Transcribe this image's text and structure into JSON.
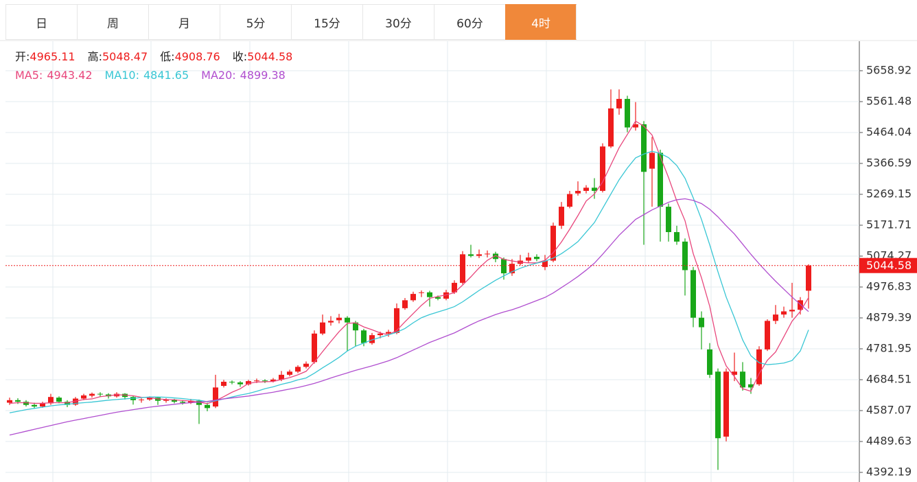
{
  "tabs": {
    "items": [
      "日",
      "周",
      "月",
      "5分",
      "15分",
      "30分",
      "60分",
      "4时"
    ],
    "active": 7,
    "active_color": "#f0883a"
  },
  "chart_data": {
    "type": "candlestick",
    "up_color": "#ee1c1c",
    "down_color": "#19a719",
    "ylim": [
      4361.9,
      5752
    ],
    "yticks": [
      4392.19,
      4489.63,
      4587.07,
      4684.51,
      4781.95,
      4879.39,
      4976.83,
      5074.27,
      5171.71,
      5269.15,
      5366.59,
      5464.04,
      5561.48,
      5658.92
    ],
    "grid": true,
    "ohlc_labels": [
      "开:",
      "高:",
      "低:",
      "收:"
    ],
    "ohlc": [
      [
        4612,
        4628,
        4605,
        4620
      ],
      [
        4620,
        4626,
        4608,
        4615
      ],
      [
        4615,
        4620,
        4600,
        4605
      ],
      [
        4605,
        4612,
        4595,
        4600
      ],
      [
        4600,
        4615,
        4596,
        4610
      ],
      [
        4610,
        4640,
        4605,
        4630
      ],
      [
        4628,
        4632,
        4610,
        4615
      ],
      [
        4615,
        4620,
        4598,
        4605
      ],
      [
        4606,
        4630,
        4602,
        4625
      ],
      [
        4625,
        4640,
        4620,
        4635
      ],
      [
        4634,
        4644,
        4628,
        4640
      ],
      [
        4640,
        4645,
        4630,
        4638
      ],
      [
        4638,
        4642,
        4625,
        4632
      ],
      [
        4632,
        4645,
        4628,
        4640
      ],
      [
        4640,
        4642,
        4622,
        4630
      ],
      [
        4630,
        4634,
        4606,
        4620
      ],
      [
        4620,
        4626,
        4612,
        4622
      ],
      [
        4622,
        4632,
        4618,
        4628
      ],
      [
        4628,
        4630,
        4605,
        4618
      ],
      [
        4618,
        4626,
        4612,
        4622
      ],
      [
        4622,
        4624,
        4610,
        4615
      ],
      [
        4615,
        4620,
        4606,
        4612
      ],
      [
        4612,
        4624,
        4608,
        4618
      ],
      [
        4618,
        4622,
        4545,
        4605
      ],
      [
        4605,
        4612,
        4585,
        4595
      ],
      [
        4600,
        4700,
        4595,
        4660
      ],
      [
        4665,
        4684,
        4660,
        4678
      ],
      [
        4678,
        4682,
        4670,
        4676
      ],
      [
        4676,
        4680,
        4662,
        4670
      ],
      [
        4670,
        4684,
        4666,
        4680
      ],
      [
        4680,
        4688,
        4674,
        4682
      ],
      [
        4682,
        4686,
        4674,
        4680
      ],
      [
        4680,
        4690,
        4676,
        4685
      ],
      [
        4685,
        4712,
        4680,
        4700
      ],
      [
        4700,
        4716,
        4695,
        4710
      ],
      [
        4710,
        4730,
        4705,
        4725
      ],
      [
        4725,
        4742,
        4720,
        4735
      ],
      [
        4740,
        4840,
        4735,
        4830
      ],
      [
        4830,
        4890,
        4825,
        4865
      ],
      [
        4865,
        4885,
        4855,
        4870
      ],
      [
        4872,
        4892,
        4862,
        4880
      ],
      [
        4880,
        4885,
        4775,
        4865
      ],
      [
        4865,
        4870,
        4790,
        4840
      ],
      [
        4840,
        4845,
        4790,
        4800
      ],
      [
        4800,
        4832,
        4795,
        4825
      ],
      [
        4825,
        4836,
        4815,
        4830
      ],
      [
        4830,
        4842,
        4820,
        4835
      ],
      [
        4832,
        4925,
        4828,
        4910
      ],
      [
        4910,
        4942,
        4905,
        4935
      ],
      [
        4935,
        4962,
        4930,
        4955
      ],
      [
        4958,
        4966,
        4945,
        4960
      ],
      [
        4960,
        4965,
        4915,
        4945
      ],
      [
        4945,
        4950,
        4935,
        4940
      ],
      [
        4940,
        4968,
        4935,
        4960
      ],
      [
        4960,
        4998,
        4955,
        4990
      ],
      [
        4990,
        5090,
        4985,
        5080
      ],
      [
        5080,
        5110,
        5070,
        5075
      ],
      [
        5075,
        5095,
        5068,
        5080
      ],
      [
        5080,
        5092,
        5070,
        5082
      ],
      [
        5082,
        5088,
        5055,
        5065
      ],
      [
        5065,
        5070,
        5000,
        5020
      ],
      [
        5020,
        5065,
        5012,
        5050
      ],
      [
        5050,
        5078,
        5045,
        5060
      ],
      [
        5060,
        5085,
        5052,
        5070
      ],
      [
        5072,
        5080,
        5058,
        5065
      ],
      [
        5040,
        5078,
        5030,
        5060
      ],
      [
        5060,
        5180,
        5055,
        5170
      ],
      [
        5170,
        5245,
        5160,
        5230
      ],
      [
        5230,
        5280,
        5225,
        5270
      ],
      [
        5272,
        5310,
        5265,
        5280
      ],
      [
        5280,
        5298,
        5272,
        5290
      ],
      [
        5290,
        5320,
        5255,
        5280
      ],
      [
        5280,
        5430,
        5275,
        5420
      ],
      [
        5420,
        5600,
        5415,
        5540
      ],
      [
        5540,
        5600,
        5520,
        5570
      ],
      [
        5570,
        5580,
        5465,
        5480
      ],
      [
        5480,
        5560,
        5470,
        5490
      ],
      [
        5490,
        5500,
        5110,
        5340
      ],
      [
        5350,
        5450,
        5230,
        5400
      ],
      [
        5400,
        5410,
        5120,
        5230
      ],
      [
        5230,
        5240,
        5120,
        5150
      ],
      [
        5150,
        5170,
        5110,
        5120
      ],
      [
        5120,
        5130,
        4950,
        5030
      ],
      [
        5030,
        5040,
        4850,
        4880
      ],
      [
        4880,
        4900,
        4780,
        4850
      ],
      [
        4780,
        4800,
        4690,
        4700
      ],
      [
        4710,
        4720,
        4400,
        4500
      ],
      [
        4505,
        4720,
        4490,
        4710
      ],
      [
        4700,
        4770,
        4680,
        4710
      ],
      [
        4710,
        4740,
        4650,
        4660
      ],
      [
        4670,
        4690,
        4640,
        4660
      ],
      [
        4670,
        4790,
        4665,
        4780
      ],
      [
        4780,
        4875,
        4775,
        4870
      ],
      [
        4870,
        4920,
        4860,
        4890
      ],
      [
        4890,
        4915,
        4880,
        4900
      ],
      [
        4900,
        4990,
        4880,
        4905
      ],
      [
        4905,
        4945,
        4890,
        4935
      ],
      [
        4965.11,
        5048.47,
        4908.76,
        5044.58
      ]
    ],
    "series": [
      {
        "name": "MA5:",
        "color": "#e8467c",
        "current": 4943.42,
        "values": [
          4610,
          4612,
          4612,
          4610,
          4610,
          4612,
          4612,
          4612,
          4617,
          4622,
          4624,
          4631,
          4634,
          4637,
          4636,
          4634,
          4629,
          4628,
          4624,
          4622,
          4621,
          4619,
          4617,
          4614,
          4609,
          4618,
          4631,
          4645,
          4656,
          4673,
          4677,
          4678,
          4679,
          4685,
          4691,
          4700,
          4711,
          4740,
          4773,
          4805,
          4836,
          4862,
          4864,
          4851,
          4842,
          4832,
          4826,
          4840,
          4867,
          4893,
          4919,
          4941,
          4947,
          4952,
          4959,
          4983,
          5009,
          5037,
          5061,
          5076,
          5064,
          5059,
          5055,
          5053,
          5053,
          5061,
          5085,
          5119,
          5159,
          5202,
          5248,
          5270,
          5308,
          5362,
          5416,
          5458,
          5500,
          5484,
          5456,
          5388,
          5322,
          5248,
          5186,
          5082,
          5006,
          4916,
          4792,
          4728,
          4694,
          4656,
          4648,
          4704,
          4746,
          4772,
          4820,
          4869,
          4900,
          4943.42
        ]
      },
      {
        "name": "MA10:",
        "color": "#38c6d4",
        "current": 4841.65,
        "values": [
          4580,
          4585,
          4590,
          4594,
          4598,
          4602,
          4605,
          4607,
          4610,
          4612,
          4614,
          4617,
          4620,
          4622,
          4624,
          4626,
          4628,
          4630,
          4630,
          4629,
          4627,
          4625,
          4622,
          4620,
          4615,
          4618,
          4624,
          4630,
          4636,
          4641,
          4648,
          4656,
          4662,
          4670,
          4676,
          4684,
          4690,
          4705,
          4722,
          4738,
          4755,
          4775,
          4790,
          4800,
          4810,
          4818,
          4826,
          4834,
          4846,
          4864,
          4880,
          4890,
          4898,
          4906,
          4915,
          4930,
          4948,
          4966,
          4982,
          4998,
          5012,
          5025,
          5036,
          5045,
          5052,
          5058,
          5068,
          5082,
          5100,
          5120,
          5150,
          5180,
          5225,
          5270,
          5315,
          5352,
          5384,
          5396,
          5405,
          5398,
          5385,
          5360,
          5320,
          5258,
          5190,
          5110,
          5025,
          4945,
          4880,
          4810,
          4760,
          4738,
          4732,
          4734,
          4737,
          4745,
          4775,
          4841.65
        ]
      },
      {
        "name": "MA20:",
        "color": "#b04ecf",
        "current": 4899.38,
        "values": [
          4510,
          4516,
          4522,
          4528,
          4534,
          4540,
          4546,
          4552,
          4557,
          4562,
          4567,
          4572,
          4577,
          4582,
          4586,
          4590,
          4594,
          4598,
          4601,
          4604,
          4607,
          4610,
          4612,
          4614,
          4616,
          4620,
          4624,
          4627,
          4630,
          4633,
          4637,
          4641,
          4645,
          4650,
          4655,
          4660,
          4666,
          4673,
          4681,
          4690,
          4698,
          4706,
          4714,
          4721,
          4728,
          4736,
          4744,
          4754,
          4766,
          4778,
          4790,
          4802,
          4812,
          4822,
          4832,
          4845,
          4858,
          4870,
          4880,
          4890,
          4898,
          4905,
          4914,
          4924,
          4934,
          4944,
          4958,
          4975,
          4992,
          5010,
          5030,
          5052,
          5080,
          5110,
          5140,
          5165,
          5190,
          5205,
          5220,
          5232,
          5244,
          5252,
          5255,
          5250,
          5240,
          5222,
          5198,
          5170,
          5144,
          5112,
          5080,
          5050,
          5022,
          4995,
          4970,
          4945,
          4922,
          4899.38
        ]
      }
    ]
  }
}
